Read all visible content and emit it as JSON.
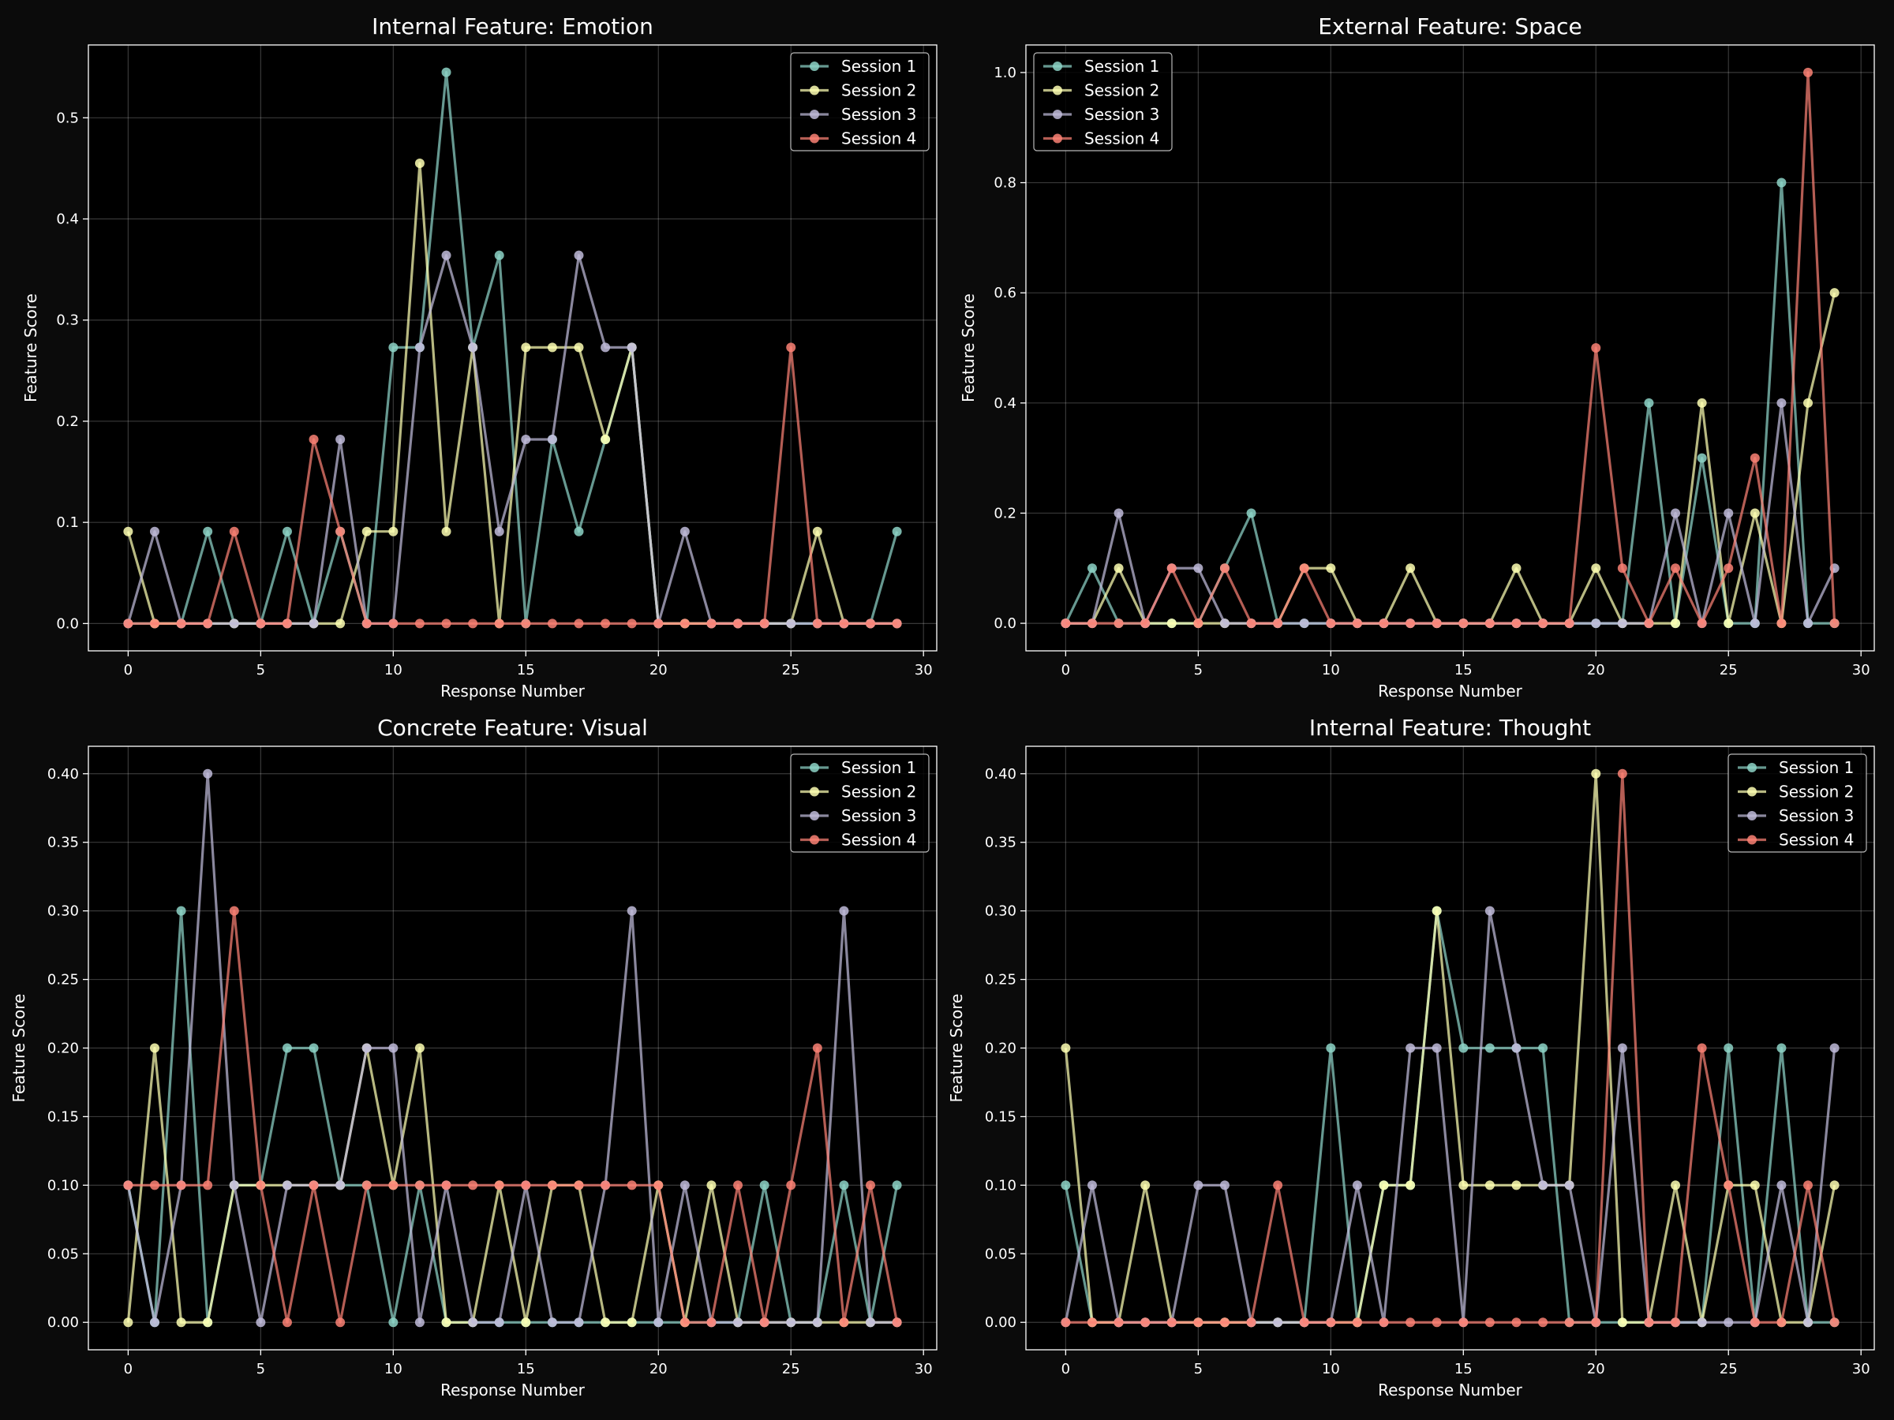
{
  "chart_data": [
    {
      "type": "line",
      "title": "Internal Feature: Emotion",
      "xlabel": "Response Number",
      "ylabel": "Feature Score",
      "xlim": [
        -1.5,
        30.5
      ],
      "ylim": [
        -0.027,
        0.572
      ],
      "xticks": [
        0,
        5,
        10,
        15,
        20,
        25,
        30
      ],
      "yticks": [
        0.0,
        0.1,
        0.2,
        0.3,
        0.4,
        0.5
      ],
      "ytick_labels": [
        "0.0",
        "0.1",
        "0.2",
        "0.3",
        "0.4",
        "0.5"
      ],
      "legend_position": "top-right",
      "grid": true,
      "x": [
        0,
        1,
        2,
        3,
        4,
        5,
        6,
        7,
        8,
        9,
        10,
        11,
        12,
        13,
        14,
        15,
        16,
        17,
        18,
        19,
        20,
        21,
        22,
        23,
        24,
        25,
        26,
        27,
        28,
        29
      ],
      "series": [
        {
          "name": "Session 1",
          "values": [
            0,
            0,
            0,
            0.091,
            0,
            0,
            0.091,
            0,
            0.091,
            0,
            0.273,
            0.273,
            0.545,
            0.273,
            0.364,
            0,
            0.182,
            0.091,
            0.182,
            0.273,
            0,
            0,
            0,
            0,
            0,
            0,
            0,
            0,
            0,
            0.091
          ]
        },
        {
          "name": "Session 2",
          "values": [
            0.091,
            0,
            0,
            0,
            0,
            0,
            0,
            0,
            0,
            0.091,
            0.091,
            0.455,
            0.091,
            0.273,
            0,
            0.273,
            0.273,
            0.273,
            0.182,
            0.273,
            0,
            0,
            0,
            0,
            0,
            0,
            0.091,
            0,
            0,
            0
          ]
        },
        {
          "name": "Session 3",
          "values": [
            0,
            0.091,
            0,
            0,
            0,
            0,
            0,
            0,
            0.182,
            0,
            0,
            0.273,
            0.364,
            0.273,
            0.091,
            0.182,
            0.182,
            0.364,
            0.273,
            0.273,
            0,
            0.091,
            0,
            0,
            0,
            0,
            0,
            0,
            0,
            0
          ]
        },
        {
          "name": "Session 4",
          "values": [
            0,
            0,
            0,
            0,
            0.091,
            0,
            0,
            0.182,
            0.091,
            0,
            0,
            0,
            0,
            0,
            0,
            0,
            0,
            0,
            0,
            0,
            0,
            0,
            0,
            0,
            0,
            0.273,
            0,
            0,
            0,
            0
          ]
        }
      ]
    },
    {
      "type": "line",
      "title": "External Feature: Space",
      "xlabel": "Response Number",
      "ylabel": "Feature Score",
      "xlim": [
        -1.5,
        30.5
      ],
      "ylim": [
        -0.05,
        1.05
      ],
      "xticks": [
        0,
        5,
        10,
        15,
        20,
        25,
        30
      ],
      "yticks": [
        0.0,
        0.2,
        0.4,
        0.6,
        0.8,
        1.0
      ],
      "ytick_labels": [
        "0.0",
        "0.2",
        "0.4",
        "0.6",
        "0.8",
        "1.0"
      ],
      "legend_position": "top-left",
      "grid": true,
      "x": [
        0,
        1,
        2,
        3,
        4,
        5,
        6,
        7,
        8,
        9,
        10,
        11,
        12,
        13,
        14,
        15,
        16,
        17,
        18,
        19,
        20,
        21,
        22,
        23,
        24,
        25,
        26,
        27,
        28,
        29
      ],
      "series": [
        {
          "name": "Session 1",
          "values": [
            0,
            0.1,
            0,
            0,
            0,
            0,
            0.1,
            0.2,
            0,
            0,
            0,
            0,
            0,
            0,
            0,
            0,
            0,
            0,
            0,
            0,
            0,
            0,
            0.4,
            0,
            0.3,
            0,
            0,
            0.8,
            0,
            0
          ]
        },
        {
          "name": "Session 2",
          "values": [
            0,
            0,
            0.1,
            0,
            0,
            0,
            0,
            0,
            0,
            0.1,
            0.1,
            0,
            0,
            0.1,
            0,
            0,
            0,
            0.1,
            0,
            0,
            0.1,
            0,
            0,
            0,
            0.4,
            0,
            0.2,
            0,
            0.4,
            0.6
          ]
        },
        {
          "name": "Session 3",
          "values": [
            0,
            0,
            0.2,
            0,
            0.1,
            0.1,
            0,
            0,
            0,
            0,
            0,
            0,
            0,
            0,
            0,
            0,
            0,
            0,
            0,
            0,
            0,
            0,
            0,
            0.2,
            0,
            0.2,
            0,
            0.4,
            0,
            0.1
          ]
        },
        {
          "name": "Session 4",
          "values": [
            0,
            0,
            0,
            0,
            0.1,
            0,
            0.1,
            0,
            0,
            0.1,
            0,
            0,
            0,
            0,
            0,
            0,
            0,
            0,
            0,
            0,
            0.5,
            0.1,
            0,
            0.1,
            0,
            0.1,
            0.3,
            0,
            1.0,
            0
          ]
        }
      ]
    },
    {
      "type": "line",
      "title": "Concrete Feature: Visual",
      "xlabel": "Response Number",
      "ylabel": "Feature Score",
      "xlim": [
        -1.5,
        30.5
      ],
      "ylim": [
        -0.02,
        0.42
      ],
      "xticks": [
        0,
        5,
        10,
        15,
        20,
        25,
        30
      ],
      "yticks": [
        0.0,
        0.05,
        0.1,
        0.15,
        0.2,
        0.25,
        0.3,
        0.35,
        0.4
      ],
      "ytick_labels": [
        "0.00",
        "0.05",
        "0.10",
        "0.15",
        "0.20",
        "0.25",
        "0.30",
        "0.35",
        "0.40"
      ],
      "legend_position": "top-right",
      "grid": true,
      "x": [
        0,
        1,
        2,
        3,
        4,
        5,
        6,
        7,
        8,
        9,
        10,
        11,
        12,
        13,
        14,
        15,
        16,
        17,
        18,
        19,
        20,
        21,
        22,
        23,
        24,
        25,
        26,
        27,
        28,
        29
      ],
      "series": [
        {
          "name": "Session 1",
          "values": [
            0.1,
            0,
            0.3,
            0,
            0.1,
            0.1,
            0.2,
            0.2,
            0.1,
            0.1,
            0,
            0.1,
            0,
            0,
            0,
            0,
            0,
            0,
            0,
            0,
            0,
            0,
            0,
            0,
            0.1,
            0,
            0,
            0.1,
            0,
            0.1
          ]
        },
        {
          "name": "Session 2",
          "values": [
            0,
            0.2,
            0,
            0,
            0.1,
            0.1,
            0.1,
            0.1,
            0.1,
            0.2,
            0.1,
            0.2,
            0,
            0,
            0.1,
            0,
            0.1,
            0.1,
            0,
            0,
            0.1,
            0,
            0.1,
            0,
            0,
            0,
            0,
            0,
            0,
            0
          ]
        },
        {
          "name": "Session 3",
          "values": [
            0.1,
            0,
            0.1,
            0.4,
            0.1,
            0,
            0.1,
            0.1,
            0.1,
            0.2,
            0.2,
            0,
            0.1,
            0,
            0,
            0.1,
            0,
            0,
            0.1,
            0.3,
            0,
            0.1,
            0,
            0,
            0,
            0,
            0,
            0.3,
            0,
            0
          ]
        },
        {
          "name": "Session 4",
          "values": [
            0.1,
            0.1,
            0.1,
            0.1,
            0.3,
            0.1,
            0,
            0.1,
            0,
            0.1,
            0.1,
            0.1,
            0.1,
            0.1,
            0.1,
            0.1,
            0.1,
            0.1,
            0.1,
            0.1,
            0.1,
            0,
            0,
            0.1,
            0,
            0.1,
            0.2,
            0,
            0.1,
            0
          ]
        }
      ]
    },
    {
      "type": "line",
      "title": "Internal Feature: Thought",
      "xlabel": "Response Number",
      "ylabel": "Feature Score",
      "xlim": [
        -1.5,
        30.5
      ],
      "ylim": [
        -0.02,
        0.42
      ],
      "xticks": [
        0,
        5,
        10,
        15,
        20,
        25,
        30
      ],
      "yticks": [
        0.0,
        0.05,
        0.1,
        0.15,
        0.2,
        0.25,
        0.3,
        0.35,
        0.4
      ],
      "ytick_labels": [
        "0.00",
        "0.05",
        "0.10",
        "0.15",
        "0.20",
        "0.25",
        "0.30",
        "0.35",
        "0.40"
      ],
      "legend_position": "top-right",
      "grid": true,
      "x": [
        0,
        1,
        2,
        3,
        4,
        5,
        6,
        7,
        8,
        9,
        10,
        11,
        12,
        13,
        14,
        15,
        16,
        17,
        18,
        19,
        20,
        21,
        22,
        23,
        24,
        25,
        26,
        27,
        28,
        29
      ],
      "series": [
        {
          "name": "Session 1",
          "values": [
            0.1,
            0,
            0,
            0,
            0,
            0,
            0,
            0,
            0,
            0,
            0.2,
            0,
            0.1,
            0.1,
            0.3,
            0.2,
            0.2,
            0.2,
            0.2,
            0,
            0,
            0,
            0,
            0,
            0,
            0.2,
            0,
            0.2,
            0,
            0
          ]
        },
        {
          "name": "Session 2",
          "values": [
            0.2,
            0,
            0,
            0.1,
            0,
            0,
            0,
            0,
            0,
            0,
            0,
            0,
            0.1,
            0.1,
            0.3,
            0.1,
            0.1,
            0.1,
            0.1,
            0.1,
            0.4,
            0,
            0,
            0.1,
            0,
            0.1,
            0.1,
            0,
            0,
            0.1
          ]
        },
        {
          "name": "Session 3",
          "values": [
            0,
            0.1,
            0,
            0,
            0,
            0.1,
            0.1,
            0,
            0,
            0,
            0,
            0.1,
            0,
            0.2,
            0.2,
            0,
            0.3,
            0.2,
            0.1,
            0.1,
            0,
            0.2,
            0,
            0,
            0,
            0,
            0,
            0.1,
            0,
            0.2
          ]
        },
        {
          "name": "Session 4",
          "values": [
            0,
            0,
            0,
            0,
            0,
            0,
            0,
            0,
            0.1,
            0,
            0,
            0,
            0,
            0,
            0,
            0,
            0,
            0,
            0,
            0,
            0,
            0.4,
            0,
            0,
            0.2,
            0.1,
            0,
            0,
            0.1,
            0
          ]
        }
      ]
    }
  ],
  "colors": {
    "background": "#0b0b0b",
    "axes_background": "#000000",
    "text": "#ffffff",
    "series": [
      "#8dd3c7",
      "#feffb3",
      "#bfbbd9",
      "#fa8174"
    ]
  }
}
